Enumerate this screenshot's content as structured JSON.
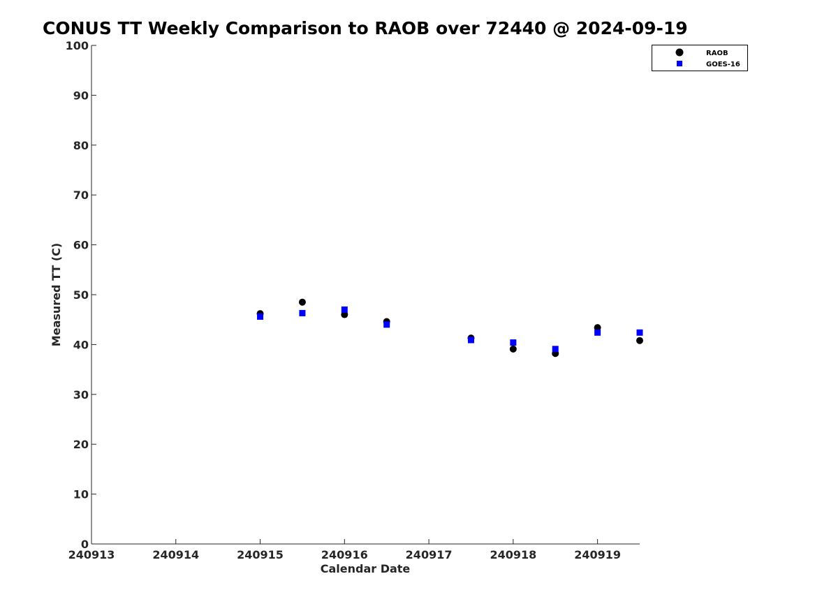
{
  "chart_data": {
    "type": "scatter",
    "title": "CONUS TT Weekly Comparison to RAOB over 72440 @ 2024-09-19",
    "xlabel": "Calendar Date",
    "ylabel": "Measured TT (C)",
    "xlim": [
      240913,
      240919.5
    ],
    "ylim": [
      0,
      100
    ],
    "x_ticks": [
      240913,
      240914,
      240915,
      240916,
      240917,
      240918,
      240919
    ],
    "x_tick_labels": [
      "240913",
      "240914",
      "240915",
      "240916",
      "240917",
      "240918",
      "240919"
    ],
    "y_ticks": [
      0,
      10,
      20,
      30,
      40,
      50,
      60,
      70,
      80,
      90,
      100
    ],
    "y_tick_labels": [
      "0",
      "10",
      "20",
      "30",
      "40",
      "50",
      "60",
      "70",
      "80",
      "90",
      "100"
    ],
    "grid": false,
    "legend_position": "top-right",
    "series": [
      {
        "name": "RAOB",
        "marker": "circle",
        "color": "#000000",
        "x": [
          240915,
          240915.5,
          240916,
          240916.5,
          240917.5,
          240918,
          240918.5,
          240919,
          240919.5
        ],
        "y": [
          46.2,
          48.5,
          46.0,
          44.6,
          41.3,
          39.1,
          38.2,
          43.4,
          40.8
        ]
      },
      {
        "name": "GOES-16",
        "marker": "square",
        "color": "#0000ff",
        "x": [
          240915,
          240915.5,
          240916,
          240916.5,
          240917.5,
          240918,
          240918.5,
          240919,
          240919.5
        ],
        "y": [
          45.6,
          46.3,
          47.0,
          44.0,
          40.9,
          40.4,
          39.1,
          42.4,
          42.4
        ]
      }
    ]
  }
}
